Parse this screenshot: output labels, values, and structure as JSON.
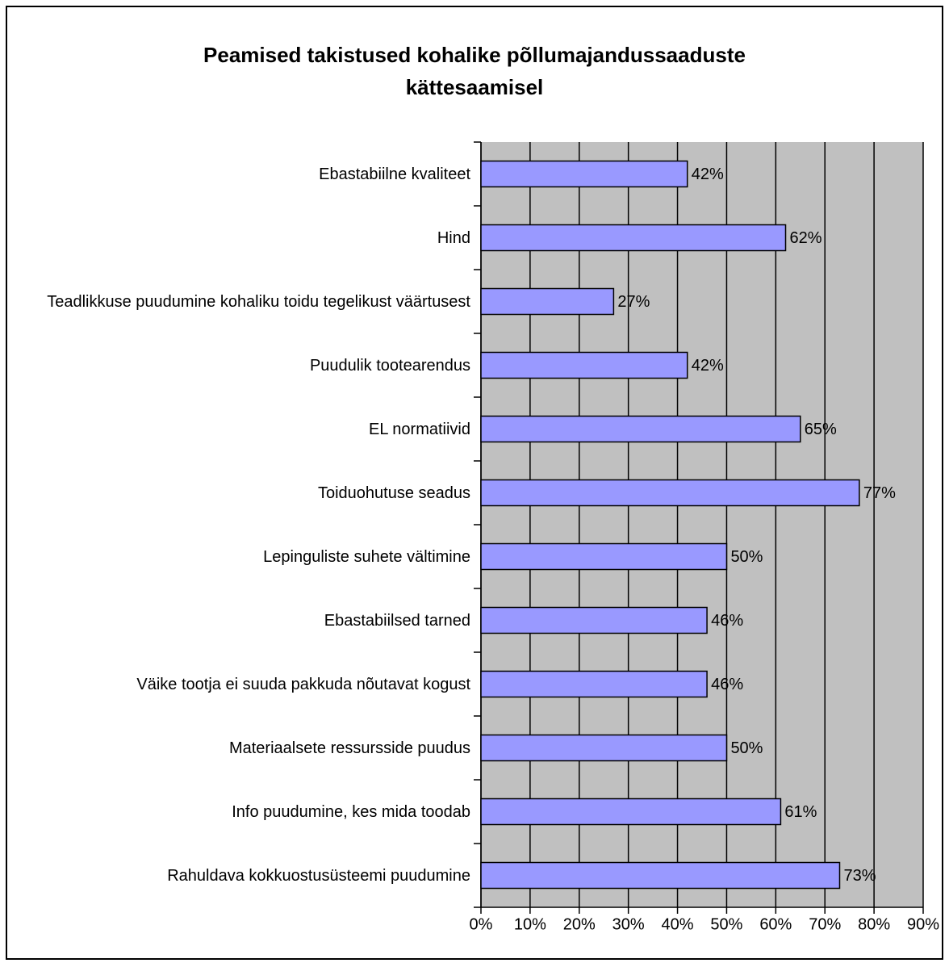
{
  "chart_data": {
    "type": "bar",
    "orientation": "horizontal",
    "title": "Peamised takistused kohalike põllumajandussaaduste kättesaamisel",
    "categories": [
      "Ebastabiilne kvaliteet",
      "Hind",
      "Teadlikkuse puudumine kohaliku toidu tegelikust väärtusest",
      "Puudulik tootearendus",
      "EL normatiivid",
      "Toiduohutuse seadus",
      "Lepinguliste suhete vältimine",
      "Ebastabiilsed tarned",
      "Väike tootja ei suuda pakkuda nõutavat kogust",
      "Materiaalsete ressursside puudus",
      "Info puudumine, kes mida toodab",
      "Rahuldava kokkuostusüsteemi puudumine"
    ],
    "values": [
      42,
      62,
      27,
      42,
      65,
      77,
      50,
      46,
      46,
      50,
      61,
      73
    ],
    "value_labels": [
      "42%",
      "62%",
      "27%",
      "42%",
      "65%",
      "77%",
      "50%",
      "46%",
      "46%",
      "50%",
      "61%",
      "73%"
    ],
    "color": "#9999ff",
    "xlim": [
      0,
      90
    ],
    "xticks": [
      {
        "value": 0,
        "label": "0%"
      },
      {
        "value": 10,
        "label": "10%"
      },
      {
        "value": 20,
        "label": "20%"
      },
      {
        "value": 30,
        "label": "30%"
      },
      {
        "value": 40,
        "label": "40%"
      },
      {
        "value": 50,
        "label": "50%"
      },
      {
        "value": 60,
        "label": "60%"
      },
      {
        "value": 70,
        "label": "70%"
      },
      {
        "value": 80,
        "label": "80%"
      },
      {
        "value": 90,
        "label": "90%"
      }
    ],
    "grid": true
  }
}
